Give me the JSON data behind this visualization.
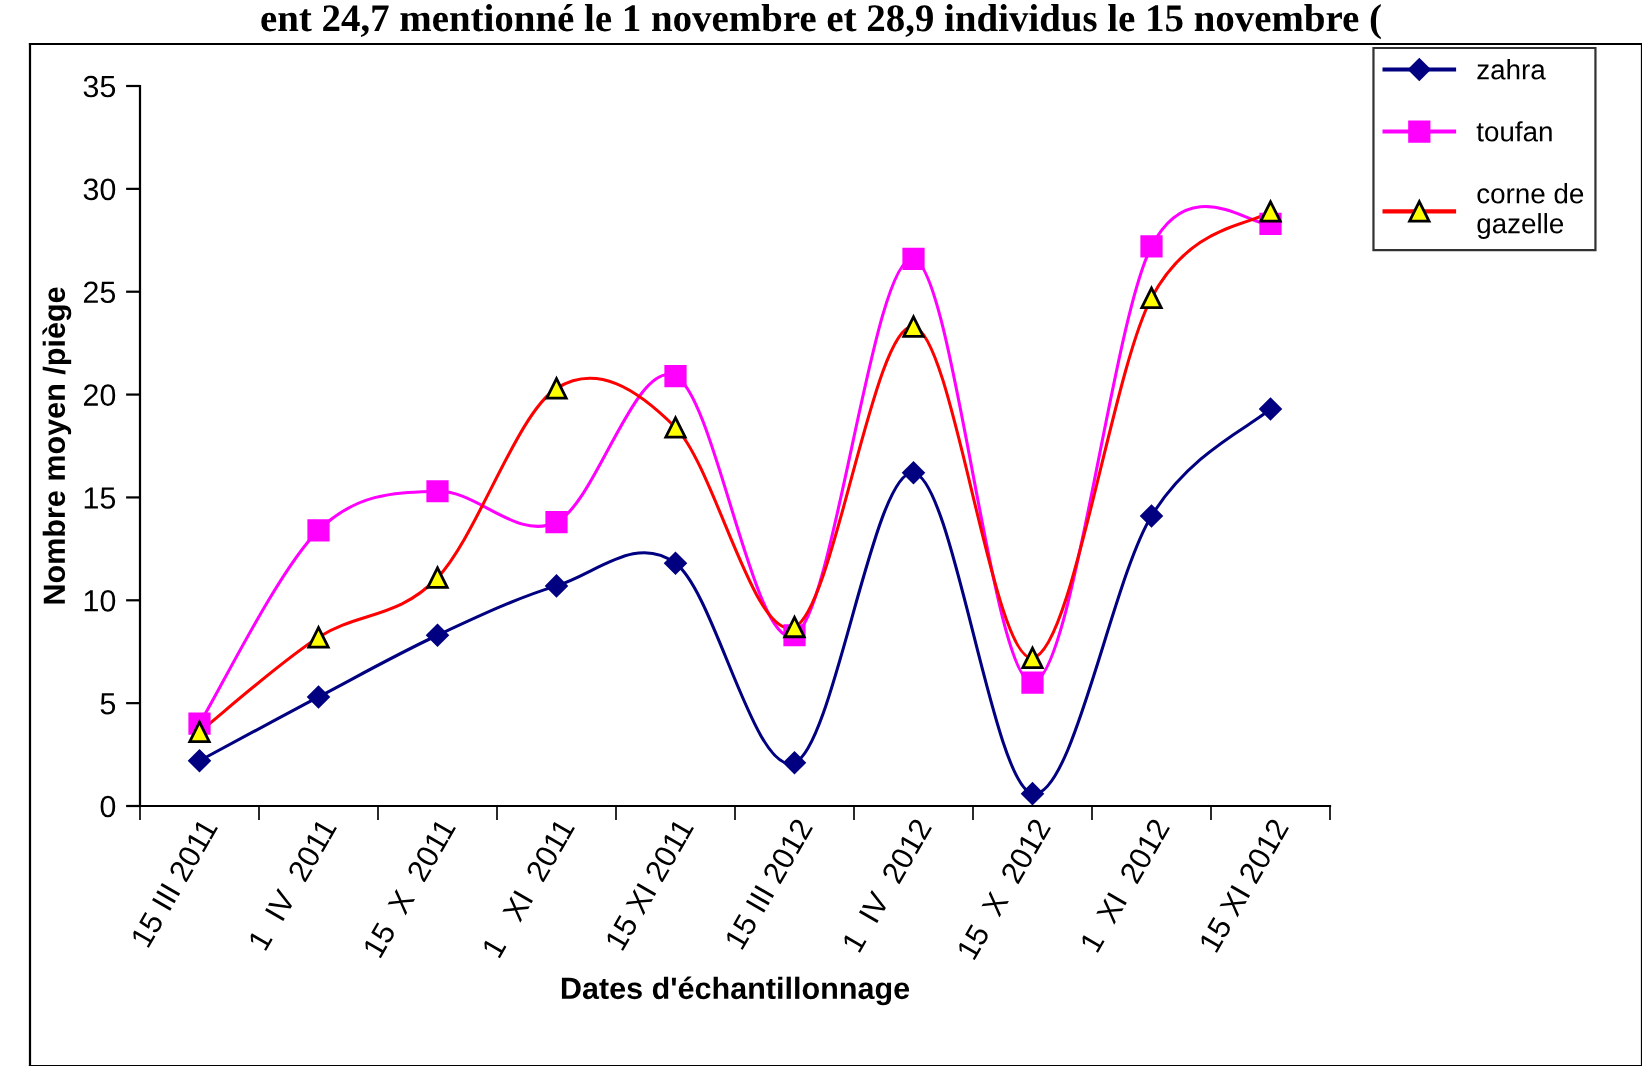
{
  "chart_data": {
    "type": "line",
    "annotations": [
      "ent 24,7 mentionné le 1 novembre et 28,9 individus le 15 novembre ("
    ],
    "xlabel": "Dates d'échantillonnage",
    "ylabel": "Nombre moyen /piège",
    "categories": [
      "15 III 2011",
      "1  IV  2011",
      "15  X  2011",
      "1   XI  2011",
      "15 XI 2011",
      "15 III 2012",
      "1  IV  2012",
      "15  X  2012",
      "1  XI  2012",
      "15 XI 2012"
    ],
    "series": [
      {
        "name": "zahra",
        "color": "#000080",
        "marker": "diamond",
        "values": [
          2.2,
          5.3,
          8.3,
          10.7,
          11.8,
          2.1,
          16.2,
          0.6,
          14.1,
          19.3
        ]
      },
      {
        "name": "toufan",
        "color": "#ff00ff",
        "marker": "square",
        "values": [
          4.0,
          13.4,
          15.3,
          13.8,
          20.9,
          8.3,
          26.6,
          6.0,
          27.2,
          28.3
        ]
      },
      {
        "name": "corne de gazelle",
        "color": "#ff0000",
        "marker": "triangle",
        "values": [
          3.6,
          8.2,
          11.1,
          20.3,
          18.4,
          8.7,
          23.3,
          7.2,
          24.7,
          28.9
        ]
      }
    ],
    "ylim": [
      0,
      35
    ],
    "yticks": [
      0,
      5,
      10,
      15,
      20,
      25,
      30,
      35
    ],
    "grid": false,
    "legend": "top right",
    "line_style": "solid"
  }
}
